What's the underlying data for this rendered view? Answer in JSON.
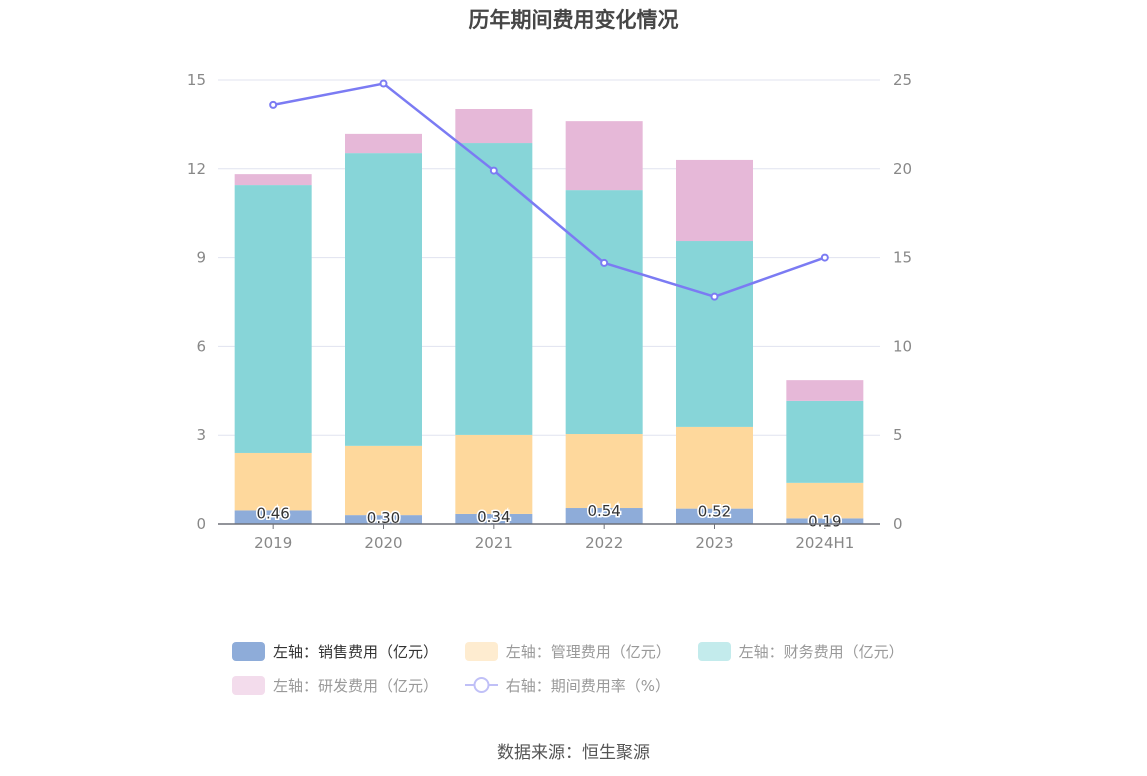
{
  "chart_data": {
    "type": "bar",
    "title": "历年期间费用变化情况",
    "categories": [
      "2019",
      "2020",
      "2021",
      "2022",
      "2023",
      "2024H1"
    ],
    "left_axis": {
      "ylim": [
        0,
        15
      ],
      "ticks": [
        "0",
        "3",
        "6",
        "9",
        "12",
        "15"
      ]
    },
    "right_axis": {
      "ylim": [
        0,
        25
      ],
      "ticks": [
        "0",
        "5",
        "10",
        "15",
        "20",
        "25"
      ]
    },
    "grid": true,
    "legend_position": "bottom",
    "series": [
      {
        "name": "左轴：销售费用（亿元）",
        "kind": "bar",
        "color": "#8eacd9",
        "legend_color": "#8eacd9",
        "values": [
          0.46,
          0.3,
          0.34,
          0.54,
          0.52,
          0.19
        ],
        "labels": [
          "0.46",
          "0.30",
          "0.34",
          "0.54",
          "0.52",
          "0.19"
        ]
      },
      {
        "name": "左轴：管理费用（亿元）",
        "kind": "bar",
        "color": "#fed89c",
        "legend_color": "#feecd0",
        "values": [
          1.94,
          2.34,
          2.67,
          2.5,
          2.76,
          1.2
        ]
      },
      {
        "name": "左轴：财务费用（亿元）",
        "kind": "bar",
        "color": "#87d5d8",
        "legend_color": "#c3ebec",
        "values": [
          9.05,
          9.89,
          9.86,
          8.24,
          6.28,
          2.77
        ]
      },
      {
        "name": "左轴：研发费用（亿元）",
        "kind": "bar",
        "color": "#e6b8d8",
        "legend_color": "#f3dcec",
        "values": [
          0.37,
          0.65,
          1.15,
          2.33,
          2.74,
          0.7
        ]
      },
      {
        "name": "右轴：期间费用率（%）",
        "kind": "line",
        "axis": "right",
        "color": "#7b7bf3",
        "legend_color": "#c0c0f7",
        "values": [
          23.6,
          24.8,
          19.9,
          14.7,
          12.8,
          15.0
        ]
      }
    ]
  },
  "source": "数据来源：恒生聚源"
}
